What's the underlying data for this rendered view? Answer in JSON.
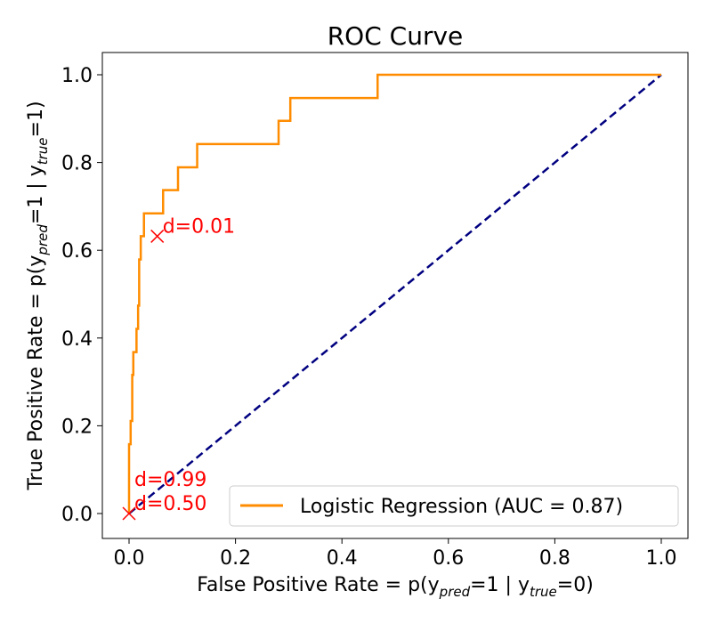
{
  "chart_data": {
    "type": "line",
    "title": "ROC Curve",
    "xlabel_parts": [
      "False Positive Rate = p(y",
      "pred",
      "=1 | y",
      "true",
      "=0)"
    ],
    "ylabel_parts": [
      "True Positive Rate = p(y",
      "pred",
      "=1 | y",
      "true",
      "=1)"
    ],
    "xlim": [
      -0.05,
      1.05
    ],
    "ylim": [
      -0.05,
      1.05
    ],
    "xticks": [
      "0.0",
      "0.2",
      "0.4",
      "0.6",
      "0.8",
      "1.0"
    ],
    "yticks": [
      "0.0",
      "0.2",
      "0.4",
      "0.6",
      "0.8",
      "1.0"
    ],
    "grid": false,
    "legend_position": "lower-right",
    "series": [
      {
        "name": "Logistic Regression (AUC = 0.87)",
        "color": "#ff8c00",
        "step": true,
        "fpr": [
          0,
          0.003,
          0.006,
          0.008,
          0.014,
          0.017,
          0.019,
          0.022,
          0.028,
          0.064,
          0.092,
          0.128,
          0.281,
          0.303,
          0.467,
          0.923,
          1.0
        ],
        "tpr": [
          0,
          0.158,
          0.211,
          0.316,
          0.368,
          0.421,
          0.474,
          0.579,
          0.632,
          0.684,
          0.737,
          0.789,
          0.842,
          0.895,
          0.947,
          1.0,
          1.0
        ]
      }
    ],
    "reference_line": {
      "color": "#000080",
      "style": "dashed",
      "x": [
        0,
        1
      ],
      "y": [
        0,
        1
      ]
    },
    "annotations": [
      {
        "x": 0.053,
        "y": 0.632,
        "text": "d=0.01",
        "marker": "x",
        "color": "#ff0000"
      },
      {
        "x": 0.0,
        "y": 0.0,
        "text": "d=0.50",
        "marker": "x",
        "color": "#ff0000"
      },
      {
        "x": 0.0,
        "y": 0.0,
        "text": "d=0.99",
        "marker": "x",
        "color": "#ff0000"
      }
    ]
  }
}
